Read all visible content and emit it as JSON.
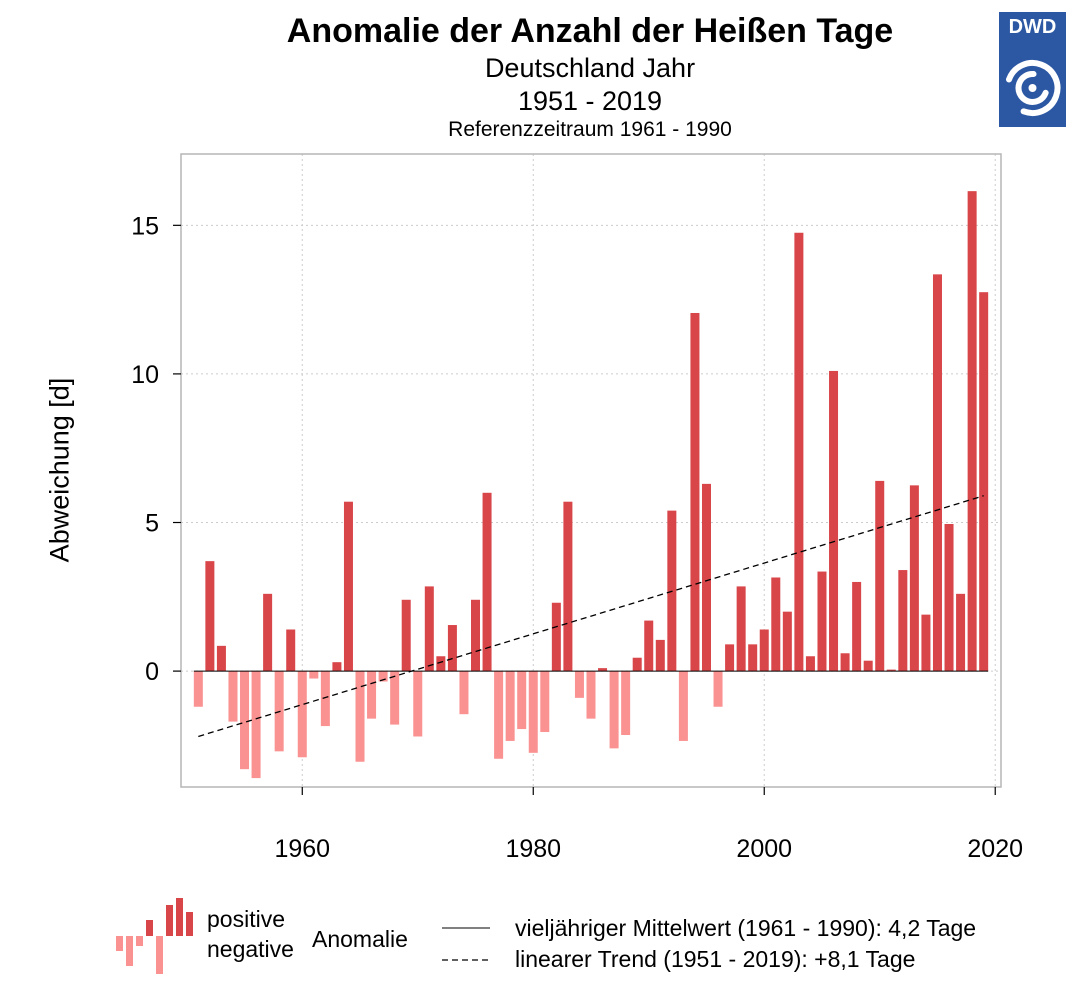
{
  "header": {
    "title": "Anomalie der Anzahl der Heißen Tage",
    "subtitle": "Deutschland Jahr",
    "period": "1951 - 2019",
    "reference": "Referenzzeitraum 1961 - 1990"
  },
  "logo": {
    "text": "DWD",
    "color": "#2c58a3",
    "icon": "dwd-swirl-icon"
  },
  "legend": {
    "positive": "positive",
    "negative": "negative",
    "anomaly": "Anomalie",
    "mean": "vieljähriger Mittelwert (1961 - 1990): 4,2 Tage",
    "trend": "linearer Trend (1951 - 2019): +8,1 Tage"
  },
  "colors": {
    "positive": "#d9464a",
    "negative": "#fa9292",
    "trend": "#000000",
    "grid": "#cccccc"
  },
  "chart_data": {
    "type": "bar",
    "ylabel": "Abweichung [d]",
    "xlim": [
      1949.5,
      2020.5
    ],
    "ylim": [
      -3.9,
      17.4
    ],
    "xticks": [
      1960,
      1980,
      2000,
      2020
    ],
    "yticks": [
      0,
      5,
      10,
      15
    ],
    "grid": true,
    "x": [
      1951,
      1952,
      1953,
      1954,
      1955,
      1956,
      1957,
      1958,
      1959,
      1960,
      1961,
      1962,
      1963,
      1964,
      1965,
      1966,
      1967,
      1968,
      1969,
      1970,
      1971,
      1972,
      1973,
      1974,
      1975,
      1976,
      1977,
      1978,
      1979,
      1980,
      1981,
      1982,
      1983,
      1984,
      1985,
      1986,
      1987,
      1988,
      1989,
      1990,
      1991,
      1992,
      1993,
      1994,
      1995,
      1996,
      1997,
      1998,
      1999,
      2000,
      2001,
      2002,
      2003,
      2004,
      2005,
      2006,
      2007,
      2008,
      2009,
      2010,
      2011,
      2012,
      2013,
      2014,
      2015,
      2016,
      2017,
      2018,
      2019
    ],
    "values": [
      -1.2,
      3.7,
      0.85,
      -1.7,
      -3.3,
      -3.6,
      2.6,
      -2.7,
      1.4,
      -2.9,
      -0.25,
      -1.85,
      0.3,
      5.7,
      -3.05,
      -1.6,
      -0.35,
      -1.8,
      2.4,
      -2.2,
      2.85,
      0.5,
      1.55,
      -1.45,
      2.4,
      6.0,
      -2.95,
      -2.35,
      -1.95,
      -2.75,
      -2.05,
      2.3,
      5.7,
      -0.9,
      -1.6,
      0.1,
      -2.6,
      -2.15,
      0.45,
      1.7,
      1.05,
      5.4,
      -2.35,
      12.05,
      6.3,
      -1.2,
      0.9,
      2.85,
      0.9,
      1.4,
      3.15,
      2.0,
      14.75,
      0.5,
      3.35,
      10.1,
      0.6,
      3.0,
      0.35,
      6.4,
      0.05,
      3.4,
      6.25,
      1.9,
      13.35,
      4.95,
      2.6,
      16.15,
      12.75
    ],
    "trend": {
      "x": [
        1951,
        2019
      ],
      "y": [
        -2.2,
        5.9
      ]
    }
  }
}
